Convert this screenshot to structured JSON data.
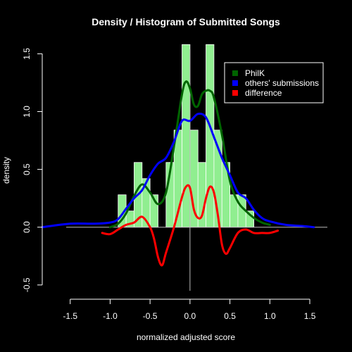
{
  "chart_data": {
    "type": "histogram_density",
    "title": "Density / Histogram of Submitted Songs",
    "xlabel": "normalized adjusted score",
    "ylabel": "density",
    "xlim": [
      -1.85,
      1.72
    ],
    "ylim": [
      -0.55,
      1.6
    ],
    "xticks": [
      -1.5,
      -1.0,
      -0.5,
      0.0,
      0.5,
      1.0,
      1.5
    ],
    "xtick_labels": [
      "-1.5",
      "-1.0",
      "-0.5",
      "0.0",
      "0.5",
      "1.0",
      "1.5"
    ],
    "yticks": [
      -0.5,
      0.0,
      0.5,
      1.0,
      1.5
    ],
    "ytick_labels": [
      "-0.5",
      "0.0",
      "0.5",
      "1.0",
      "1.5"
    ],
    "background": "#000000",
    "foreground": "#ffffff",
    "histogram": {
      "color": "#90ee90",
      "edge_color": "#ffffff",
      "bin_edges": [
        -0.9,
        -0.8,
        -0.7,
        -0.6,
        -0.5,
        -0.4,
        -0.3,
        -0.2,
        -0.1,
        0.0,
        0.1,
        0.2,
        0.3,
        0.4,
        0.5,
        0.6,
        0.7,
        0.8
      ],
      "densities": [
        0.28,
        0.14,
        0.56,
        0.42,
        0.28,
        0.0,
        0.56,
        0.84,
        1.58,
        0.84,
        0.56,
        1.58,
        0.84,
        0.56,
        0.28,
        0.28,
        0.14
      ]
    },
    "series": [
      {
        "name": "PhilK",
        "color": "#006400",
        "x": [
          -1.0,
          -0.9,
          -0.8,
          -0.7,
          -0.6,
          -0.5,
          -0.4,
          -0.3,
          -0.2,
          -0.1,
          -0.05,
          0.0,
          0.05,
          0.1,
          0.15,
          0.2,
          0.25,
          0.3,
          0.4,
          0.5,
          0.6,
          0.7,
          0.8,
          0.9,
          1.0
        ],
        "y": [
          0.0,
          0.03,
          0.12,
          0.27,
          0.37,
          0.3,
          0.2,
          0.3,
          0.7,
          1.15,
          1.26,
          1.2,
          1.06,
          1.05,
          1.15,
          1.18,
          1.18,
          1.12,
          0.8,
          0.4,
          0.22,
          0.14,
          0.08,
          0.04,
          0.02
        ]
      },
      {
        "name": "others' submissions",
        "color": "#0000ff",
        "x": [
          -1.85,
          -1.5,
          -1.2,
          -1.0,
          -0.9,
          -0.8,
          -0.7,
          -0.6,
          -0.5,
          -0.4,
          -0.3,
          -0.2,
          -0.1,
          0.0,
          0.1,
          0.2,
          0.3,
          0.4,
          0.5,
          0.6,
          0.7,
          0.8,
          0.9,
          1.0,
          1.2,
          1.4,
          1.55
        ],
        "y": [
          0.0,
          0.03,
          0.03,
          0.04,
          0.07,
          0.16,
          0.25,
          0.32,
          0.45,
          0.55,
          0.6,
          0.74,
          0.92,
          0.92,
          0.98,
          0.95,
          0.78,
          0.6,
          0.45,
          0.3,
          0.25,
          0.15,
          0.08,
          0.05,
          0.02,
          0.01,
          0.0
        ]
      },
      {
        "name": "difference",
        "color": "#ff0000",
        "x": [
          -1.1,
          -1.0,
          -0.9,
          -0.8,
          -0.7,
          -0.6,
          -0.5,
          -0.45,
          -0.4,
          -0.35,
          -0.3,
          -0.2,
          -0.1,
          -0.05,
          0.0,
          0.05,
          0.1,
          0.15,
          0.2,
          0.25,
          0.3,
          0.35,
          0.4,
          0.45,
          0.5,
          0.6,
          0.7,
          0.8,
          0.9,
          1.0,
          1.1
        ],
        "y": [
          -0.05,
          -0.06,
          -0.02,
          0.02,
          0.04,
          0.09,
          0.0,
          -0.1,
          -0.26,
          -0.33,
          -0.22,
          0.0,
          0.26,
          0.35,
          0.34,
          0.15,
          0.08,
          0.1,
          0.25,
          0.35,
          0.3,
          0.1,
          -0.15,
          -0.23,
          -0.18,
          -0.05,
          -0.02,
          -0.05,
          -0.05,
          -0.05,
          -0.03
        ]
      }
    ],
    "legend": {
      "placement": "top-right",
      "entries": [
        "PhilK",
        "others' submissions",
        "difference"
      ]
    }
  }
}
